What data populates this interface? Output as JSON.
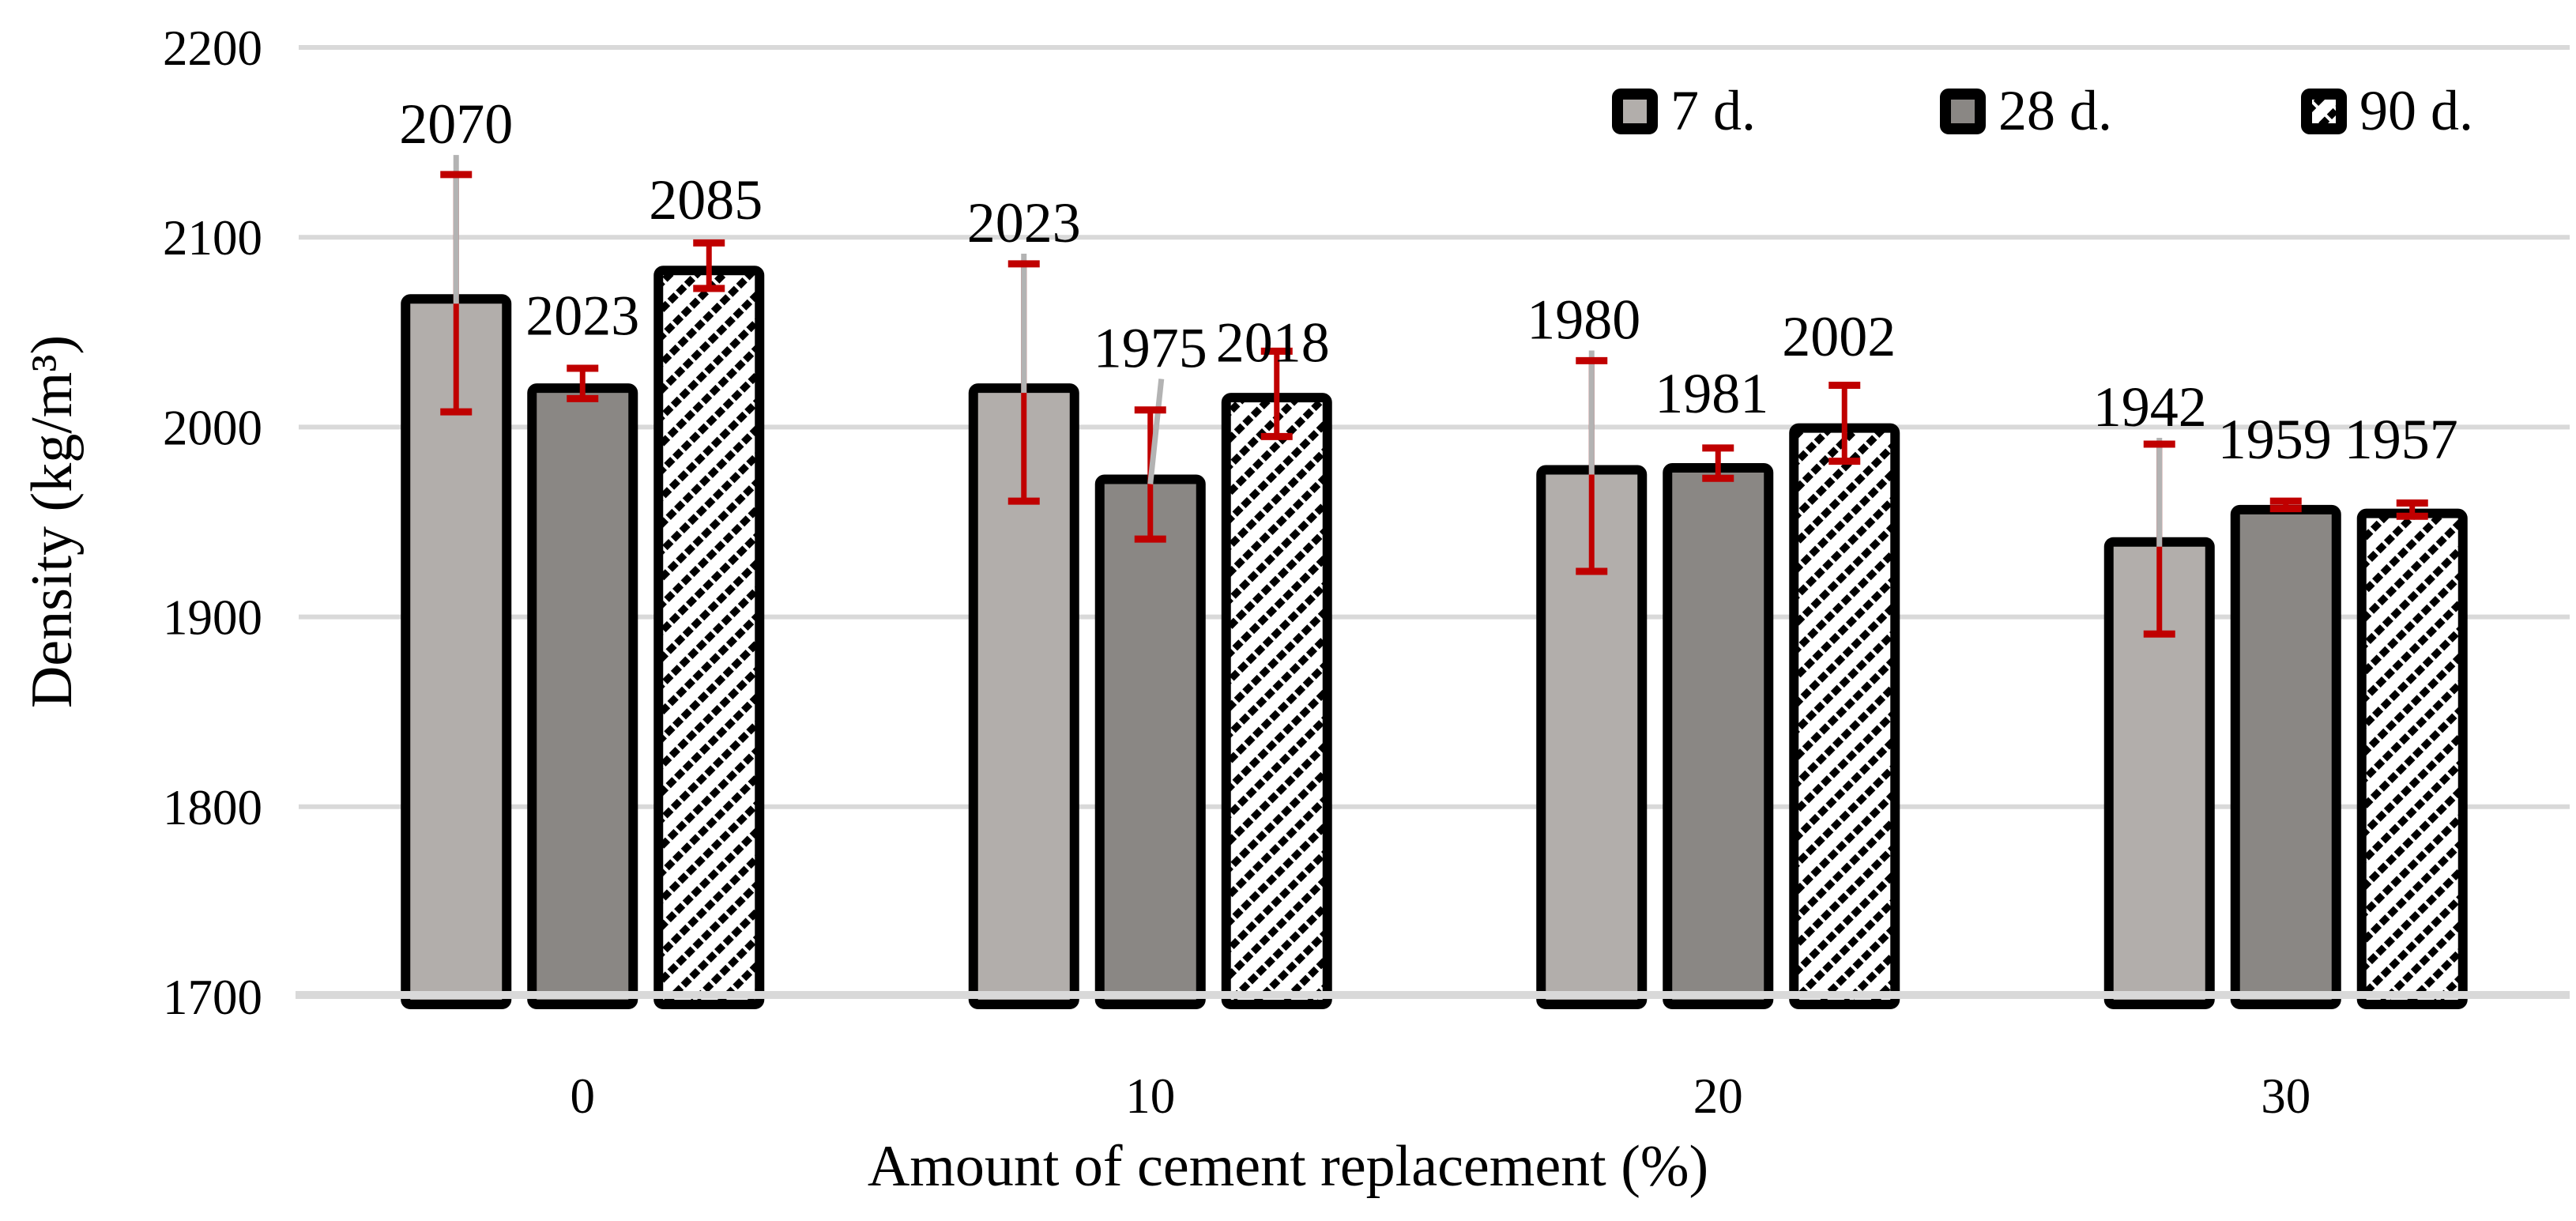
{
  "figure": {
    "background": "#ffffff"
  },
  "chart_data": {
    "type": "bar",
    "title": "",
    "xlabel": "Amount of cement replacement (%)",
    "ylabel": "Density (kg/m³)",
    "ylim": [
      1700,
      2200
    ],
    "ytick_interval": 100,
    "ytick_labels": [
      "1700",
      "1800",
      "1900",
      "2000",
      "2100",
      "2200"
    ],
    "categories": [
      "0",
      "10",
      "20",
      "30"
    ],
    "grid": "horizontal",
    "legend_position": "top-right",
    "legend_items": [
      "7 d.",
      "28 d.",
      "90 d."
    ],
    "colors": {
      "series_7d_fill": "#b2aeab",
      "series_28d_fill": "#8a8784",
      "hatch_fg": "#000000",
      "hatch_bg": "#ffffff",
      "bar_border": "#000000",
      "error_bar": "#c00000",
      "leader_line": "#b3b3b3",
      "gridline": "#d9d9d9",
      "text": "#000000"
    },
    "series": [
      {
        "name": "7 d.",
        "pattern": "solid-light-gray",
        "values": [
          2070,
          2023,
          1980,
          1942
        ],
        "err_down": [
          62,
          62,
          56,
          51
        ],
        "err_up": [
          63,
          63,
          55,
          49
        ],
        "label_y": [
          2160,
          2108,
          2057,
          2011
        ],
        "label_dx": [
          0,
          0,
          -10,
          -12
        ],
        "leader": [
          "v",
          "v",
          "v",
          "v"
        ]
      },
      {
        "name": "28 d.",
        "pattern": "solid-dark-gray",
        "values": [
          2023,
          1975,
          1981,
          1959
        ],
        "err_down": [
          8,
          34,
          8,
          2
        ],
        "err_up": [
          8,
          34,
          8,
          2
        ],
        "label_y": [
          2059,
          2042,
          2018,
          1994
        ],
        "label_dx": [
          0,
          0,
          -8,
          -14
        ],
        "leader": [
          "none",
          "slant",
          "none",
          "none"
        ]
      },
      {
        "name": "90 d.",
        "pattern": "diagonal-hatch",
        "values": [
          2085,
          2018,
          2002,
          1957
        ],
        "err_down": [
          12,
          23,
          20,
          4
        ],
        "err_up": [
          12,
          22,
          20,
          3
        ],
        "label_y": [
          2120,
          2045,
          2048,
          1994
        ],
        "label_dx": [
          -4,
          -5,
          -7,
          -14
        ],
        "leader": [
          "none",
          "none",
          "none",
          "none"
        ]
      }
    ]
  }
}
